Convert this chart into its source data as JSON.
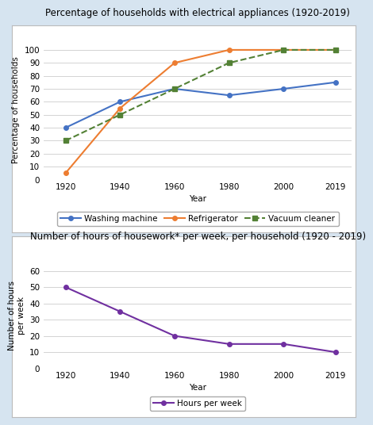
{
  "years": [
    1920,
    1940,
    1960,
    1980,
    2000,
    2019
  ],
  "washing_machine": [
    40,
    60,
    70,
    65,
    70,
    75
  ],
  "refrigerator": [
    5,
    55,
    90,
    100,
    100,
    100
  ],
  "vacuum_cleaner": [
    30,
    50,
    70,
    90,
    100,
    100
  ],
  "hours_per_week": [
    50,
    35,
    20,
    15,
    15,
    10
  ],
  "title1": "Percentage of households with electrical appliances (1920-2019)",
  "title2": "Number of hours of housework* per week, per household (1920 - 2019)",
  "ylabel1": "Percentage of households",
  "ylabel2": "Number of hours\nper week",
  "xlabel": "Year",
  "ylim1": [
    0,
    108
  ],
  "ylim2": [
    0,
    65
  ],
  "yticks1": [
    0,
    10,
    20,
    30,
    40,
    50,
    60,
    70,
    80,
    90,
    100
  ],
  "yticks2": [
    0,
    10,
    20,
    30,
    40,
    50,
    60
  ],
  "wm_color": "#4472C4",
  "ref_color": "#ED7D31",
  "vc_color": "#538135",
  "hours_color": "#7030A0",
  "bg_color": "#D6E4F0",
  "plot_bg": "#FFFFFF",
  "panel_bg": "#FFFFFF",
  "title_fontsize": 8.5,
  "label_fontsize": 7.5,
  "tick_fontsize": 7.5,
  "legend_fontsize": 7.5
}
